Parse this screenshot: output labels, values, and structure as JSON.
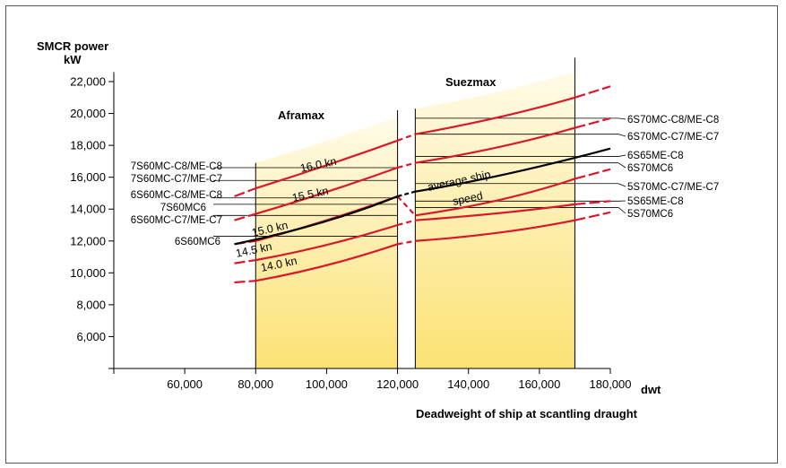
{
  "chart_data": {
    "type": "line",
    "ylabel_line1": "SMCR power",
    "ylabel_line2": "kW",
    "xlabel": "Deadweight of ship at scantling draught",
    "x_unit": "dwt",
    "xlim": [
      40000,
      180000
    ],
    "ylim": [
      4000,
      23000
    ],
    "x_ticks": [
      60000,
      80000,
      100000,
      120000,
      140000,
      160000,
      180000
    ],
    "x_tick_labels": [
      "60,000",
      "80,000",
      "100,000",
      "120,000",
      "140,000",
      "160,000",
      "180,000"
    ],
    "y_ticks": [
      6000,
      8000,
      10000,
      12000,
      14000,
      16000,
      18000,
      20000,
      22000
    ],
    "y_tick_labels": [
      "6,000",
      "8,000",
      "10,000",
      "12,000",
      "14,000",
      "16,000",
      "18,000",
      "20,000",
      "22,000"
    ],
    "regions": [
      {
        "name": "Aframax",
        "x_range": [
          80000,
          120000
        ]
      },
      {
        "name": "Suezmax",
        "x_range": [
          125000,
          170000
        ]
      }
    ],
    "speed_series": [
      {
        "name": "16.0 kn",
        "aframax": [
          [
            80000,
            15300
          ],
          [
            100000,
            16700
          ],
          [
            120000,
            18300
          ]
        ],
        "suezmax": [
          [
            125000,
            18700
          ],
          [
            150000,
            19700
          ],
          [
            170000,
            21000
          ]
        ],
        "extend_left": [
          74000,
          14800
        ],
        "extend_right": [
          180000,
          21700
        ]
      },
      {
        "name": "15.5 kn",
        "aframax": [
          [
            80000,
            13700
          ],
          [
            100000,
            15000
          ],
          [
            120000,
            16600
          ]
        ],
        "suezmax": [
          [
            125000,
            16900
          ],
          [
            150000,
            17800
          ],
          [
            170000,
            19100
          ]
        ],
        "extend_left": [
          74000,
          13300
        ],
        "extend_right": [
          180000,
          19700
        ]
      },
      {
        "name": "15.0 kn",
        "aframax": [
          [
            80000,
            12000
          ],
          [
            100000,
            13200
          ],
          [
            120000,
            14800
          ]
        ],
        "suezmax": [
          [
            125000,
            13600
          ],
          [
            150000,
            14400
          ],
          [
            170000,
            15900
          ]
        ],
        "extend_left": [
          74000,
          11800
        ],
        "extend_right": [
          180000,
          16500
        ]
      },
      {
        "name": "14.5 kn",
        "aframax": [
          [
            80000,
            10800
          ],
          [
            100000,
            11600
          ],
          [
            120000,
            13000
          ]
        ],
        "suezmax": [
          [
            125000,
            13300
          ],
          [
            150000,
            13700
          ],
          [
            170000,
            14300
          ]
        ],
        "extend_left": [
          74000,
          10600
        ],
        "extend_right": [
          180000,
          14500
        ]
      },
      {
        "name": "14.0 kn",
        "aframax": [
          [
            80000,
            9500
          ],
          [
            100000,
            10300
          ],
          [
            120000,
            11800
          ]
        ],
        "suezmax": [
          [
            125000,
            12000
          ],
          [
            150000,
            12400
          ],
          [
            170000,
            13300
          ]
        ],
        "extend_left": [
          74000,
          9400
        ],
        "extend_right": [
          180000,
          13800
        ]
      }
    ],
    "average_speed": {
      "name": "average ship speed",
      "label_line1": "average ship",
      "label_line2": "speed",
      "aframax": [
        [
          74000,
          11800
        ],
        [
          100000,
          13000
        ],
        [
          120000,
          14800
        ]
      ],
      "suezmax": [
        [
          125000,
          15100
        ],
        [
          150000,
          16000
        ],
        [
          180000,
          17800
        ]
      ]
    },
    "engines_left": [
      {
        "label": "7S60MC-C8/ME-C8",
        "power": 16600
      },
      {
        "label": "7S60MC-C7/ME-C7",
        "power": 15800
      },
      {
        "label": "6S60MC-C8/ME-C8",
        "power": 14700
      },
      {
        "label": "7S60MC6",
        "power": 14300
      },
      {
        "label": "6S60MC-C7/ME-C7",
        "power": 13600
      },
      {
        "label": "6S60MC6",
        "power": 12300
      }
    ],
    "engines_right": [
      {
        "label": "6S70MC-C8/ME-C8",
        "power": 19700
      },
      {
        "label": "6S70MC-C7/ME-C7",
        "power": 18700
      },
      {
        "label": "6S65ME-C8",
        "power": 17300
      },
      {
        "label": "6S70MC6",
        "power": 16900
      },
      {
        "label": "5S70MC-C7/ME-C7",
        "power": 15600
      },
      {
        "label": "5S65ME-C8",
        "power": 14500
      },
      {
        "label": "5S70MC6",
        "power": 14100
      }
    ],
    "colors": {
      "speed_curve": "#d9182b",
      "average_curve": "#000000",
      "fill_top": "#fffbe8",
      "fill_bottom": "#fbe273"
    }
  }
}
